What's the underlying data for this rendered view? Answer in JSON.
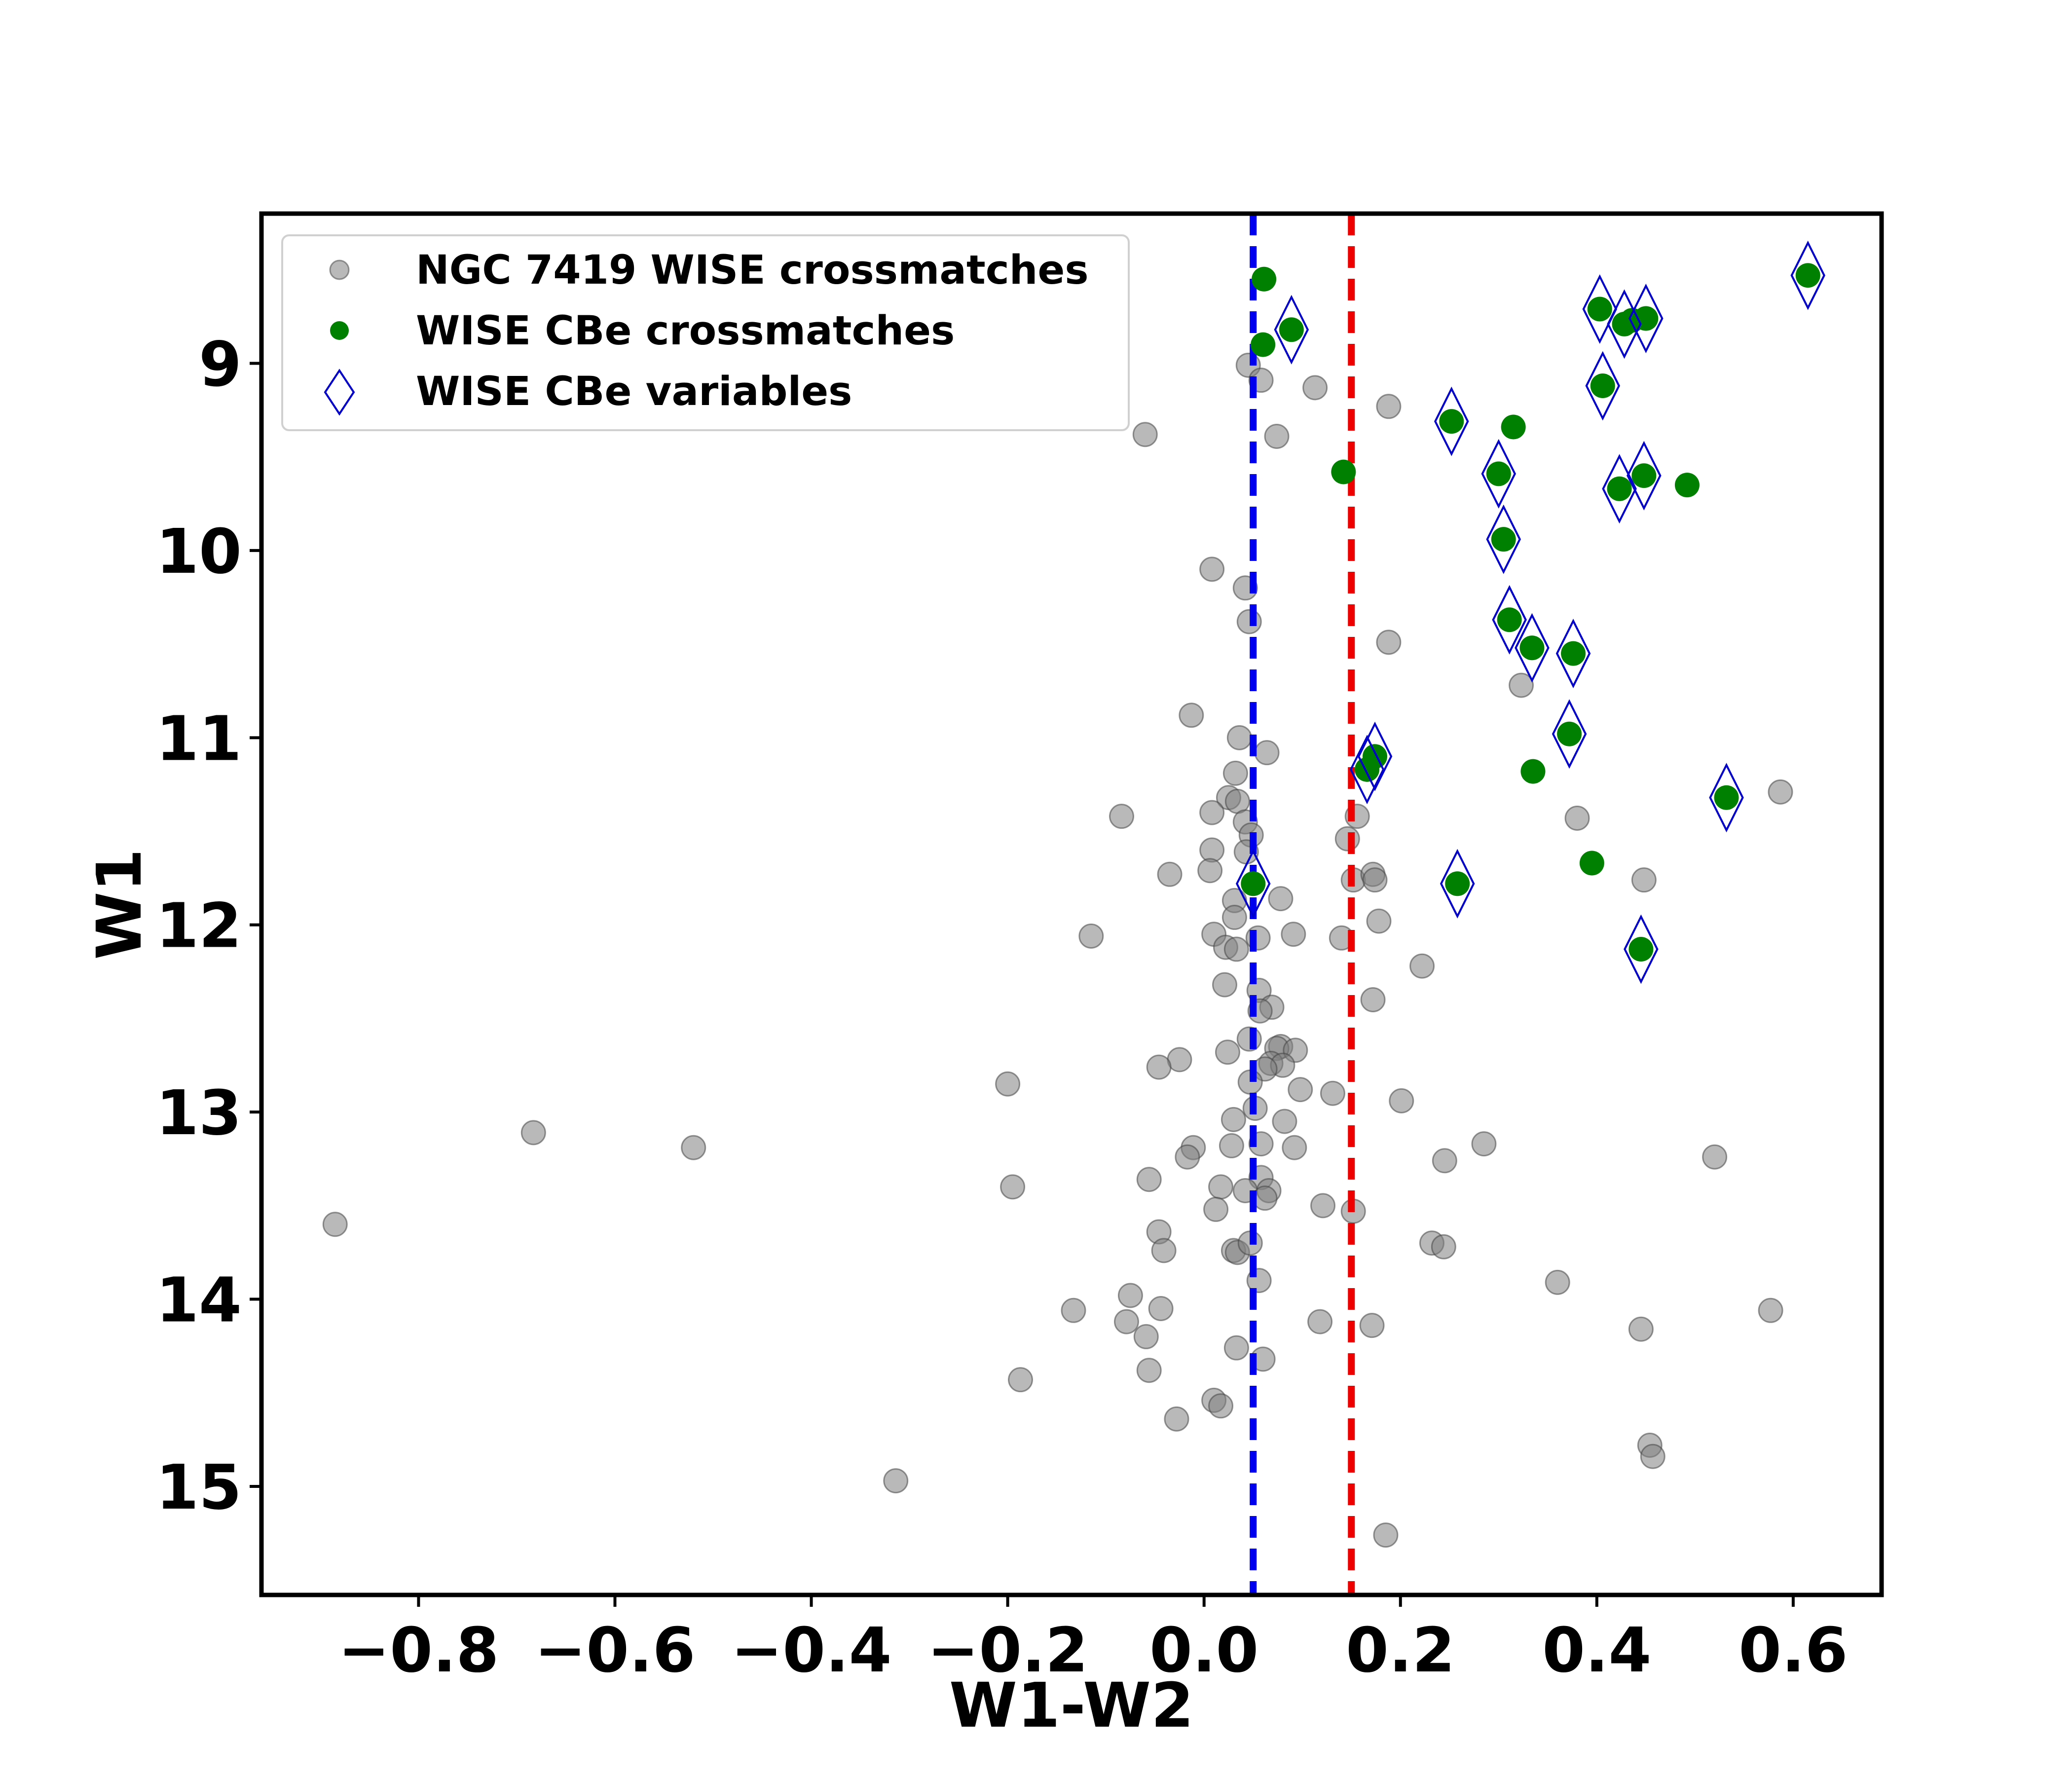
{
  "chart_data": {
    "type": "scatter",
    "title": "",
    "xlabel": "W1-W2",
    "ylabel": "W1",
    "xlim": [
      -0.96,
      0.69
    ],
    "ylim": [
      15.58,
      8.2
    ],
    "y_inverted": true,
    "xticks": [
      -0.8,
      -0.6,
      -0.4,
      -0.2,
      0.0,
      0.2,
      0.4,
      0.6
    ],
    "xtick_labels": [
      "−0.8",
      "−0.6",
      "−0.4",
      "−0.2",
      "0.0",
      "0.2",
      "0.4",
      "0.6"
    ],
    "yticks": [
      9,
      10,
      11,
      12,
      13,
      14,
      15
    ],
    "ytick_labels": [
      "9",
      "10",
      "11",
      "12",
      "13",
      "14",
      "15"
    ],
    "grid": false,
    "legend_position": "top-left",
    "vlines": [
      {
        "x": 0.05,
        "color": "#0000ee",
        "style": "dashed"
      },
      {
        "x": 0.15,
        "color": "#ee0000",
        "style": "dashed"
      }
    ],
    "series": [
      {
        "name": "NGC 7419 WISE crossmatches",
        "marker": "circle",
        "color": "#808080",
        "points": [
          [
            0.045,
            9.01
          ],
          [
            0.058,
            9.09
          ],
          [
            0.113,
            9.13
          ],
          [
            0.188,
            9.23
          ],
          [
            -0.06,
            9.38
          ],
          [
            0.074,
            9.39
          ],
          [
            0.008,
            10.1
          ],
          [
            0.042,
            10.2
          ],
          [
            0.046,
            10.38
          ],
          [
            0.188,
            10.49
          ],
          [
            0.323,
            10.72
          ],
          [
            -0.013,
            10.88
          ],
          [
            0.036,
            11.0
          ],
          [
            0.064,
            11.08
          ],
          [
            0.032,
            11.19
          ],
          [
            0.025,
            11.32
          ],
          [
            0.034,
            11.34
          ],
          [
            -0.084,
            11.42
          ],
          [
            0.008,
            11.4
          ],
          [
            0.042,
            11.45
          ],
          [
            0.048,
            11.52
          ],
          [
            0.156,
            11.42
          ],
          [
            0.146,
            11.54
          ],
          [
            0.043,
            11.61
          ],
          [
            0.008,
            11.6
          ],
          [
            0.587,
            11.29
          ],
          [
            0.38,
            11.43
          ],
          [
            -0.035,
            11.73
          ],
          [
            0.006,
            11.71
          ],
          [
            0.152,
            11.76
          ],
          [
            0.172,
            11.73
          ],
          [
            0.174,
            11.76
          ],
          [
            0.448,
            11.76
          ],
          [
            0.031,
            11.87
          ],
          [
            0.078,
            11.86
          ],
          [
            0.031,
            11.96
          ],
          [
            0.178,
            11.98
          ],
          [
            -0.115,
            12.06
          ],
          [
            0.01,
            12.05
          ],
          [
            0.055,
            12.07
          ],
          [
            0.091,
            12.05
          ],
          [
            0.14,
            12.07
          ],
          [
            0.022,
            12.12
          ],
          [
            0.033,
            12.13
          ],
          [
            0.222,
            12.22
          ],
          [
            0.021,
            12.32
          ],
          [
            0.056,
            12.35
          ],
          [
            0.069,
            12.44
          ],
          [
            0.172,
            12.4
          ],
          [
            0.057,
            12.46
          ],
          [
            0.046,
            12.61
          ],
          [
            0.078,
            12.65
          ],
          [
            0.074,
            12.66
          ],
          [
            0.093,
            12.67
          ],
          [
            0.024,
            12.68
          ],
          [
            -0.025,
            12.72
          ],
          [
            -0.046,
            12.76
          ],
          [
            0.068,
            12.74
          ],
          [
            0.08,
            12.75
          ],
          [
            0.062,
            12.77
          ],
          [
            0.047,
            12.84
          ],
          [
            0.098,
            12.88
          ],
          [
            -0.2,
            12.85
          ],
          [
            0.131,
            12.9
          ],
          [
            0.201,
            12.94
          ],
          [
            0.052,
            12.98
          ],
          [
            0.03,
            13.04
          ],
          [
            0.082,
            13.05
          ],
          [
            0.058,
            13.17
          ],
          [
            0.092,
            13.19
          ],
          [
            0.028,
            13.18
          ],
          [
            -0.011,
            13.19
          ],
          [
            -0.017,
            13.24
          ],
          [
            0.285,
            13.17
          ],
          [
            0.245,
            13.26
          ],
          [
            0.52,
            13.24
          ],
          [
            -0.683,
            13.11
          ],
          [
            -0.52,
            13.19
          ],
          [
            -0.056,
            13.36
          ],
          [
            0.058,
            13.35
          ],
          [
            0.017,
            13.4
          ],
          [
            0.042,
            13.42
          ],
          [
            0.066,
            13.42
          ],
          [
            0.062,
            13.46
          ],
          [
            -0.195,
            13.4
          ],
          [
            0.012,
            13.52
          ],
          [
            0.121,
            13.5
          ],
          [
            0.152,
            13.53
          ],
          [
            -0.885,
            13.6
          ],
          [
            -0.046,
            13.64
          ],
          [
            0.232,
            13.7
          ],
          [
            0.244,
            13.72
          ],
          [
            -0.041,
            13.74
          ],
          [
            0.03,
            13.74
          ],
          [
            0.034,
            13.75
          ],
          [
            0.047,
            13.7
          ],
          [
            0.056,
            13.9
          ],
          [
            0.36,
            13.91
          ],
          [
            -0.075,
            13.98
          ],
          [
            -0.133,
            14.06
          ],
          [
            -0.044,
            14.05
          ],
          [
            0.577,
            14.06
          ],
          [
            -0.079,
            14.12
          ],
          [
            0.118,
            14.12
          ],
          [
            0.171,
            14.14
          ],
          [
            0.445,
            14.16
          ],
          [
            -0.059,
            14.2
          ],
          [
            0.033,
            14.26
          ],
          [
            0.06,
            14.32
          ],
          [
            -0.056,
            14.38
          ],
          [
            -0.187,
            14.43
          ],
          [
            0.01,
            14.54
          ],
          [
            0.017,
            14.57
          ],
          [
            -0.028,
            14.64
          ],
          [
            0.454,
            14.78
          ],
          [
            0.457,
            14.84
          ],
          [
            -0.314,
            14.97
          ],
          [
            0.185,
            15.26
          ]
        ]
      },
      {
        "name": "WISE CBe crossmatches",
        "marker": "circle",
        "color": "#008000",
        "points": [
          [
            0.061,
            8.55
          ],
          [
            0.089,
            8.82
          ],
          [
            0.06,
            8.9
          ],
          [
            0.615,
            8.53
          ],
          [
            0.403,
            8.71
          ],
          [
            0.428,
            8.79
          ],
          [
            0.436,
            8.77
          ],
          [
            0.45,
            8.76
          ],
          [
            0.406,
            9.12
          ],
          [
            0.252,
            9.31
          ],
          [
            0.315,
            9.34
          ],
          [
            0.3,
            9.59
          ],
          [
            0.142,
            9.58
          ],
          [
            0.448,
            9.6
          ],
          [
            0.423,
            9.67
          ],
          [
            0.492,
            9.65
          ],
          [
            0.305,
            9.94
          ],
          [
            0.311,
            10.37
          ],
          [
            0.334,
            10.52
          ],
          [
            0.376,
            10.55
          ],
          [
            0.372,
            10.98
          ],
          [
            0.174,
            11.1
          ],
          [
            0.166,
            11.17
          ],
          [
            0.335,
            11.18
          ],
          [
            0.532,
            11.32
          ],
          [
            0.395,
            11.67
          ],
          [
            0.258,
            11.78
          ],
          [
            0.05,
            11.78
          ],
          [
            0.445,
            12.13
          ]
        ]
      },
      {
        "name": "WISE CBe variables",
        "marker": "diamond",
        "color": "#0000cc",
        "points": [
          [
            0.089,
            8.82
          ],
          [
            0.615,
            8.53
          ],
          [
            0.403,
            8.71
          ],
          [
            0.428,
            8.79
          ],
          [
            0.45,
            8.76
          ],
          [
            0.406,
            9.12
          ],
          [
            0.252,
            9.31
          ],
          [
            0.3,
            9.59
          ],
          [
            0.448,
            9.6
          ],
          [
            0.423,
            9.67
          ],
          [
            0.305,
            9.94
          ],
          [
            0.311,
            10.37
          ],
          [
            0.334,
            10.52
          ],
          [
            0.376,
            10.55
          ],
          [
            0.372,
            10.98
          ],
          [
            0.174,
            11.1
          ],
          [
            0.166,
            11.17
          ],
          [
            0.532,
            11.32
          ],
          [
            0.258,
            11.78
          ],
          [
            0.05,
            11.78
          ],
          [
            0.445,
            12.13
          ]
        ]
      }
    ]
  }
}
